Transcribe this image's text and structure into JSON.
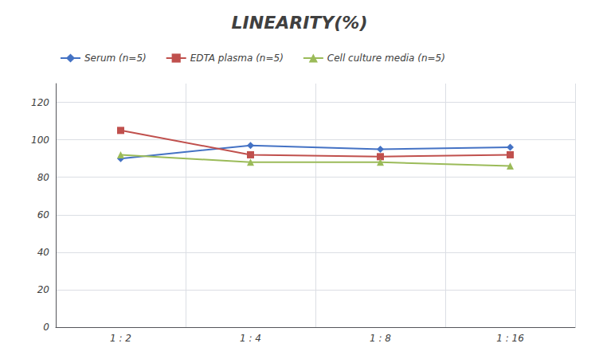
{
  "chart_data": {
    "type": "line",
    "title": "LINEARITY(%)",
    "categories": [
      "1 : 2",
      "1 : 4",
      "1 : 8",
      "1 : 16"
    ],
    "series": [
      {
        "name": "Serum (n=5)",
        "color": "#4472C4",
        "marker": "diamond",
        "values": [
          90,
          97,
          95,
          96
        ]
      },
      {
        "name": "EDTA plasma (n=5)",
        "color": "#C0504D",
        "marker": "square",
        "values": [
          105,
          92,
          91,
          92
        ]
      },
      {
        "name": "Cell culture media (n=5)",
        "color": "#9BBB59",
        "marker": "triangle",
        "values": [
          92,
          88,
          88,
          86
        ]
      }
    ],
    "ylim": [
      0,
      130
    ],
    "yticks": [
      0,
      20,
      40,
      60,
      80,
      100,
      120
    ],
    "grid": true,
    "legend": "top left"
  }
}
